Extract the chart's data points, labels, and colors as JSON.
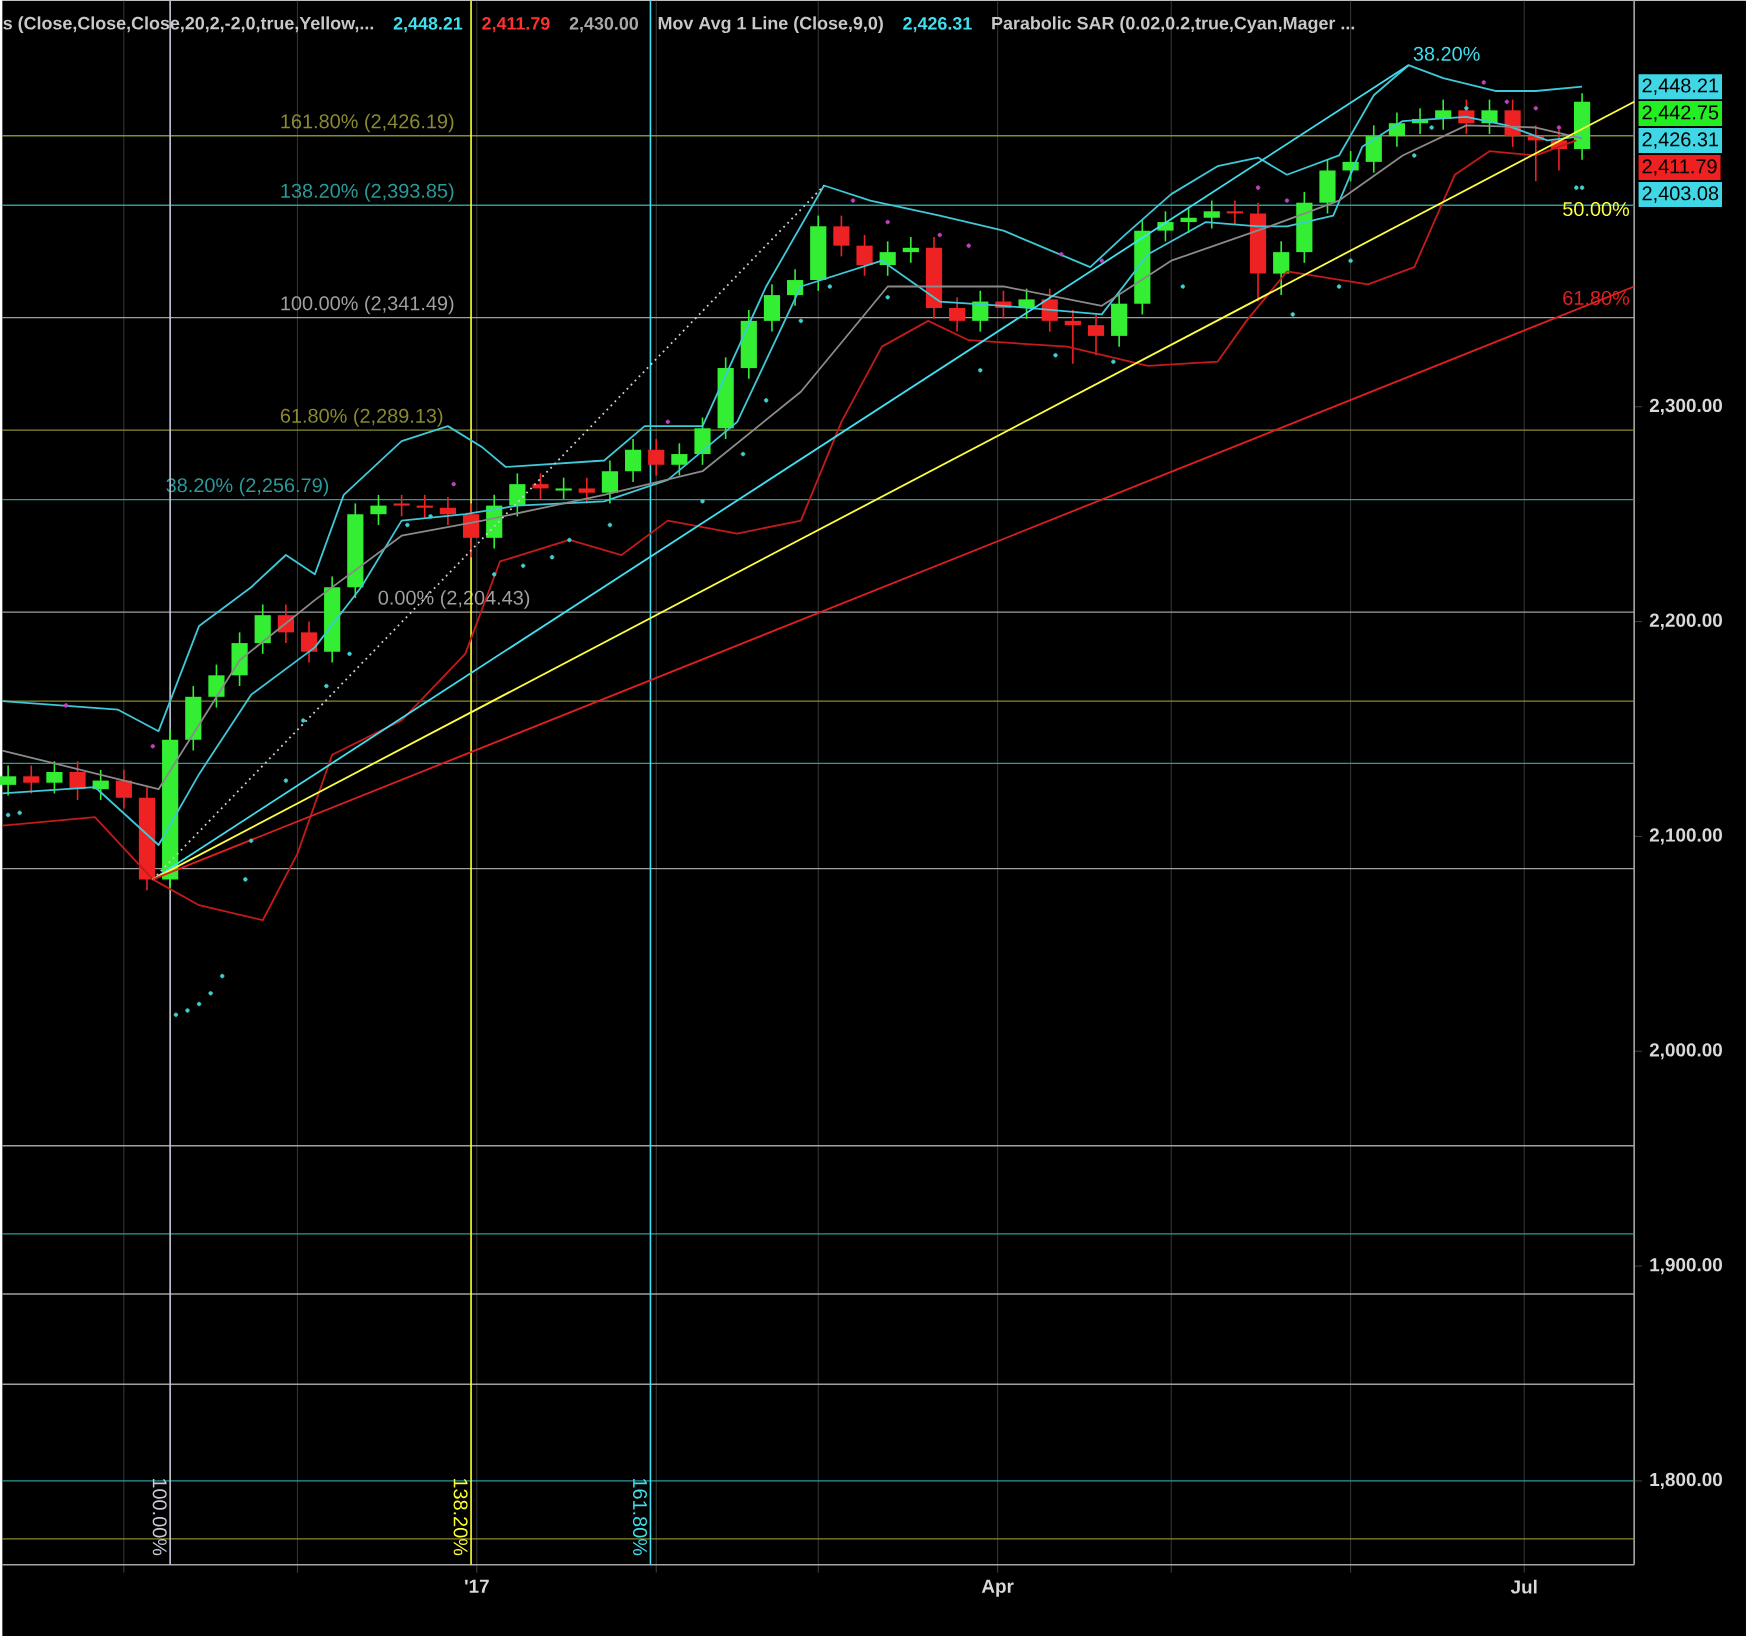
{
  "chart_data": {
    "type": "candlestick",
    "xlim": [
      "2016-10-11",
      "2017-07-20"
    ],
    "ylim": [
      1761,
      2489
    ],
    "xticks": [
      {
        "value": "2016-11-01",
        "label": null
      },
      {
        "value": "2016-12-01",
        "label": null
      },
      {
        "value": "2017-01-01",
        "label": "'17"
      },
      {
        "value": "2017-02-01",
        "label": null
      },
      {
        "value": "2017-03-01",
        "label": null
      },
      {
        "value": "2017-04-01",
        "label": "Apr"
      },
      {
        "value": "2017-05-01",
        "label": null
      },
      {
        "value": "2017-06-01",
        "label": null
      },
      {
        "value": "2017-07-01",
        "label": "Jul"
      }
    ],
    "yticks": [
      {
        "value": 1800,
        "label": "1,800.00"
      },
      {
        "value": 1900,
        "label": "1,900.00"
      },
      {
        "value": 2000,
        "label": "2,000.00"
      },
      {
        "value": 2100,
        "label": "2,100.00"
      },
      {
        "value": 2200,
        "label": "2,200.00"
      },
      {
        "value": 2300,
        "label": "2,300.00"
      }
    ],
    "grid": "x",
    "x": [
      "2016-10-12",
      "2016-10-16",
      "2016-10-20",
      "2016-10-24",
      "2016-10-28",
      "2016-11-01",
      "2016-11-05",
      "2016-11-09",
      "2016-11-13",
      "2016-11-17",
      "2016-11-21",
      "2016-11-25",
      "2016-11-29",
      "2016-12-03",
      "2016-12-07",
      "2016-12-11",
      "2016-12-15",
      "2016-12-19",
      "2016-12-23",
      "2016-12-27",
      "2016-12-31",
      "2017-01-04",
      "2017-01-08",
      "2017-01-12",
      "2017-01-16",
      "2017-01-20",
      "2017-01-24",
      "2017-01-28",
      "2017-02-01",
      "2017-02-05",
      "2017-02-09",
      "2017-02-13",
      "2017-02-17",
      "2017-02-21",
      "2017-02-25",
      "2017-03-01",
      "2017-03-05",
      "2017-03-09",
      "2017-03-13",
      "2017-03-17",
      "2017-03-21",
      "2017-03-25",
      "2017-03-29",
      "2017-04-02",
      "2017-04-06",
      "2017-04-10",
      "2017-04-14",
      "2017-04-18",
      "2017-04-22",
      "2017-04-26",
      "2017-04-30",
      "2017-05-04",
      "2017-05-08",
      "2017-05-12",
      "2017-05-16",
      "2017-05-20",
      "2017-05-24",
      "2017-05-28",
      "2017-06-01",
      "2017-06-05",
      "2017-06-09",
      "2017-06-13",
      "2017-06-17",
      "2017-06-21",
      "2017-06-25",
      "2017-06-29",
      "2017-07-03",
      "2017-07-07",
      "2017-07-11"
    ],
    "ohlc": [
      [
        2124,
        2133,
        2119,
        2128
      ],
      [
        2128,
        2133,
        2120,
        2125
      ],
      [
        2125,
        2135,
        2120,
        2130
      ],
      [
        2130,
        2135,
        2117,
        2122
      ],
      [
        2122,
        2131,
        2117,
        2126
      ],
      [
        2126,
        2131,
        2113,
        2118
      ],
      [
        2118,
        2123,
        2075,
        2080
      ],
      [
        2080,
        2150,
        2075,
        2145
      ],
      [
        2145,
        2170,
        2140,
        2165
      ],
      [
        2165,
        2180,
        2160,
        2175
      ],
      [
        2175,
        2195,
        2170,
        2190
      ],
      [
        2190,
        2208,
        2185,
        2203
      ],
      [
        2203,
        2208,
        2190,
        2195
      ],
      [
        2195,
        2200,
        2181,
        2186
      ],
      [
        2186,
        2221,
        2181,
        2216
      ],
      [
        2216,
        2255,
        2211,
        2250
      ],
      [
        2250,
        2259,
        2245,
        2254
      ],
      [
        2255,
        2259,
        2249,
        2254
      ],
      [
        2254,
        2259,
        2248,
        2253
      ],
      [
        2253,
        2258,
        2245,
        2250
      ],
      [
        2250,
        2255,
        2230,
        2239
      ],
      [
        2239,
        2259,
        2234,
        2254
      ],
      [
        2254,
        2269,
        2249,
        2264
      ],
      [
        2264,
        2269,
        2257,
        2262
      ],
      [
        2261,
        2267,
        2257,
        2262
      ],
      [
        2262,
        2267,
        2255,
        2260
      ],
      [
        2260,
        2275,
        2255,
        2270
      ],
      [
        2270,
        2285,
        2265,
        2280
      ],
      [
        2280,
        2285,
        2268,
        2273
      ],
      [
        2273,
        2283,
        2268,
        2278
      ],
      [
        2278,
        2295,
        2273,
        2290
      ],
      [
        2290,
        2323,
        2285,
        2318
      ],
      [
        2318,
        2345,
        2313,
        2340
      ],
      [
        2340,
        2357,
        2335,
        2352
      ],
      [
        2352,
        2364,
        2347,
        2359
      ],
      [
        2359,
        2389,
        2354,
        2384
      ],
      [
        2384,
        2389,
        2370,
        2375
      ],
      [
        2375,
        2380,
        2361,
        2366
      ],
      [
        2366,
        2377,
        2361,
        2372
      ],
      [
        2372,
        2379,
        2367,
        2374
      ],
      [
        2374,
        2379,
        2341,
        2346
      ],
      [
        2346,
        2351,
        2335,
        2340
      ],
      [
        2340,
        2354,
        2335,
        2349
      ],
      [
        2349,
        2354,
        2341,
        2346
      ],
      [
        2346,
        2355,
        2341,
        2350
      ],
      [
        2350,
        2355,
        2335,
        2340
      ],
      [
        2340,
        2345,
        2320,
        2338
      ],
      [
        2338,
        2343,
        2324,
        2333
      ],
      [
        2333,
        2353,
        2328,
        2348
      ],
      [
        2348,
        2387,
        2343,
        2382
      ],
      [
        2382,
        2391,
        2377,
        2386
      ],
      [
        2386,
        2393,
        2381,
        2388
      ],
      [
        2388,
        2396,
        2383,
        2391
      ],
      [
        2391,
        2396,
        2385,
        2390
      ],
      [
        2390,
        2395,
        2349,
        2362
      ],
      [
        2362,
        2377,
        2352,
        2372
      ],
      [
        2372,
        2400,
        2367,
        2395
      ],
      [
        2395,
        2415,
        2390,
        2410
      ],
      [
        2410,
        2419,
        2405,
        2414
      ],
      [
        2414,
        2431,
        2409,
        2426
      ],
      [
        2426,
        2437,
        2421,
        2432
      ],
      [
        2432,
        2439,
        2427,
        2434
      ],
      [
        2434,
        2443,
        2429,
        2438
      ],
      [
        2438,
        2443,
        2427,
        2432
      ],
      [
        2432,
        2443,
        2427,
        2438
      ],
      [
        2438,
        2443,
        2421,
        2426
      ],
      [
        2426,
        2431,
        2405,
        2424
      ],
      [
        2424,
        2429,
        2410,
        2420
      ],
      [
        2420,
        2446,
        2415,
        2442
      ]
    ],
    "colors": [
      "#33ee33",
      "#ee2222",
      "#33ee33",
      "#ee2222",
      "#33ee33",
      "#ee2222",
      "#ee2222",
      "#33ee33",
      "#33ee33",
      "#33ee33",
      "#33ee33",
      "#33ee33",
      "#ee2222",
      "#ee2222",
      "#33ee33",
      "#33ee33",
      "#33ee33",
      "#ee2222",
      "#ee2222",
      "#ee2222",
      "#ee2222",
      "#33ee33",
      "#33ee33",
      "#ee2222",
      "#33ee33",
      "#ee2222",
      "#33ee33",
      "#33ee33",
      "#ee2222",
      "#33ee33",
      "#33ee33",
      "#33ee33",
      "#33ee33",
      "#33ee33",
      "#33ee33",
      "#33ee33",
      "#ee2222",
      "#ee2222",
      "#33ee33",
      "#33ee33",
      "#ee2222",
      "#ee2222",
      "#33ee33",
      "#ee2222",
      "#33ee33",
      "#ee2222",
      "#ee2222",
      "#ee2222",
      "#33ee33",
      "#33ee33",
      "#33ee33",
      "#33ee33",
      "#33ee33",
      "#ee2222",
      "#ee2222",
      "#33ee33",
      "#33ee33",
      "#33ee33",
      "#33ee33",
      "#33ee33",
      "#33ee33",
      "#33ee33",
      "#33ee33",
      "#ee2222",
      "#33ee33",
      "#ee2222",
      "#ee2222",
      "#ee2222",
      "#33ee33"
    ],
    "series": [
      {
        "type": "line",
        "color": "#3fc8d8",
        "x": [
          "2016-10-11",
          "2016-10-31",
          "2016-11-07",
          "2016-11-14",
          "2016-11-23",
          "2016-11-29",
          "2016-12-04",
          "2016-12-09",
          "2016-12-19",
          "2016-12-27",
          "2017-01-02",
          "2017-01-06",
          "2017-01-23",
          "2017-01-30",
          "2017-02-09",
          "2017-02-20",
          "2017-03-02",
          "2017-03-10",
          "2017-03-22",
          "2017-04-02",
          "2017-04-17",
          "2017-04-23",
          "2017-05-01",
          "2017-05-09",
          "2017-05-16",
          "2017-05-21",
          "2017-05-30",
          "2017-06-05",
          "2017-06-11",
          "2017-06-17",
          "2017-06-26",
          "2017-07-03",
          "2017-07-11"
        ],
        "values": [
          2163,
          2159,
          2149,
          2198,
          2216,
          2231,
          2222,
          2259,
          2284,
          2291,
          2281,
          2272,
          2275,
          2291,
          2291,
          2356,
          2403,
          2396,
          2389,
          2382,
          2365,
          2380,
          2399,
          2412,
          2416,
          2408,
          2417,
          2445,
          2459,
          2453,
          2447,
          2447,
          2449
        ]
      },
      {
        "type": "line",
        "color": "#3fc8d8",
        "x": [
          "2016-10-11",
          "2016-10-27",
          "2016-11-07",
          "2016-11-14",
          "2016-11-23",
          "2016-12-04",
          "2016-12-12",
          "2016-12-19",
          "2016-12-30",
          "2017-01-08",
          "2017-01-23",
          "2017-02-03",
          "2017-02-15",
          "2017-02-26",
          "2017-03-12",
          "2017-03-22",
          "2017-04-02",
          "2017-04-19",
          "2017-04-27",
          "2017-05-07",
          "2017-05-16",
          "2017-05-21",
          "2017-05-29",
          "2017-06-03",
          "2017-06-10",
          "2017-06-21",
          "2017-06-28",
          "2017-07-05",
          "2017-07-11"
        ],
        "values": [
          2120,
          2123,
          2096,
          2129,
          2166,
          2188,
          2216,
          2247,
          2250,
          2254,
          2256,
          2266,
          2293,
          2356,
          2368,
          2349,
          2347,
          2343,
          2371,
          2386,
          2384,
          2384,
          2389,
          2421,
          2433,
          2435,
          2431,
          2424,
          2426
        ]
      },
      {
        "type": "line",
        "color": "#8a8a8a",
        "x": [
          "2016-10-11",
          "2016-11-07",
          "2016-11-21",
          "2016-12-04",
          "2016-12-19",
          "2017-01-02",
          "2017-01-23",
          "2017-02-09",
          "2017-02-26",
          "2017-03-13",
          "2017-04-02",
          "2017-04-19",
          "2017-05-01",
          "2017-05-18",
          "2017-05-30",
          "2017-06-10",
          "2017-06-21",
          "2017-07-03",
          "2017-07-11"
        ],
        "values": [
          2140,
          2122,
          2182,
          2210,
          2240,
          2247,
          2259,
          2270,
          2307,
          2356,
          2356,
          2347,
          2368,
          2384,
          2396,
          2417,
          2431,
          2430,
          2425
        ]
      },
      {
        "type": "line",
        "color": "#c41a1a",
        "x": [
          "2016-10-11",
          "2016-10-27",
          "2016-11-06",
          "2016-11-14",
          "2016-11-25",
          "2016-12-01",
          "2016-12-07",
          "2016-12-19",
          "2016-12-30",
          "2017-01-05",
          "2017-01-17",
          "2017-01-26",
          "2017-02-03",
          "2017-02-15",
          "2017-02-26",
          "2017-03-05",
          "2017-03-12",
          "2017-03-20",
          "2017-03-27",
          "2017-04-13",
          "2017-04-27",
          "2017-05-09",
          "2017-05-14",
          "2017-05-21",
          "2017-06-04",
          "2017-06-12",
          "2017-06-19",
          "2017-06-25",
          "2017-07-03",
          "2017-07-10"
        ],
        "values": [
          2105,
          2109,
          2080,
          2068,
          2061,
          2092,
          2138,
          2154,
          2185,
          2228,
          2238,
          2231,
          2247,
          2241,
          2247,
          2293,
          2328,
          2340,
          2331,
          2328,
          2319,
          2321,
          2340,
          2363,
          2357,
          2365,
          2408,
          2419,
          2417,
          2424
        ]
      },
      {
        "type": "line",
        "color": "#d0d0d0",
        "line_style": "dotted",
        "x": [
          "2016-11-06",
          "2017-03-02"
        ],
        "values": [
          2080,
          2403
        ]
      },
      {
        "type": "line",
        "name": "38.20%",
        "color": "#40e0f0",
        "x": [
          "2016-11-06",
          "2017-06-11"
        ],
        "values": [
          2080,
          2459
        ]
      },
      {
        "type": "line",
        "name": "50.00%",
        "color": "#ffff40",
        "x": [
          "2016-11-06",
          "2017-07-20"
        ],
        "values": [
          2080,
          2442
        ]
      },
      {
        "type": "line",
        "name": "61.80%",
        "color": "#e02020",
        "x": [
          "2016-11-06",
          "2017-07-20"
        ],
        "values": [
          2080,
          2356
        ]
      },
      {
        "type": "scatter",
        "marker": "circle",
        "color": "#40d0d0",
        "x": [
          "2016-10-12",
          "2016-10-14",
          "2016-11-10",
          "2016-11-12",
          "2016-11-14",
          "2016-11-16",
          "2016-11-18",
          "2016-11-22",
          "2016-11-23",
          "2016-11-29",
          "2016-12-02",
          "2016-12-06",
          "2016-12-10",
          "2016-12-20",
          "2016-12-24",
          "2017-01-04",
          "2017-01-09",
          "2017-01-14",
          "2017-01-17",
          "2017-01-24",
          "2017-02-09",
          "2017-02-16",
          "2017-02-20",
          "2017-02-26",
          "2017-03-03",
          "2017-03-13",
          "2017-03-29",
          "2017-04-11",
          "2017-04-21",
          "2017-05-03",
          "2017-05-22",
          "2017-05-30",
          "2017-06-01",
          "2017-06-12",
          "2017-06-15",
          "2017-06-21",
          "2017-07-10",
          "2017-07-11"
        ],
        "values": [
          2110,
          2111,
          2017,
          2019,
          2022,
          2027,
          2035,
          2080,
          2098,
          2126,
          2154,
          2170,
          2185,
          2245,
          2249,
          2222,
          2226,
          2230,
          2238,
          2245,
          2256,
          2278,
          2303,
          2340,
          2356,
          2351,
          2317,
          2324,
          2321,
          2356,
          2343,
          2356,
          2368,
          2417,
          2430,
          2439,
          2402,
          2402
        ]
      },
      {
        "type": "scatter",
        "marker": "circle",
        "color": "#c040c0",
        "x": [
          "2016-10-22",
          "2016-11-06",
          "2016-12-28",
          "2017-02-03",
          "2017-03-07",
          "2017-03-13",
          "2017-03-22",
          "2017-03-27",
          "2017-04-12",
          "2017-04-19",
          "2017-05-16",
          "2017-05-21",
          "2017-06-24",
          "2017-06-28",
          "2017-07-03",
          "2017-07-07"
        ],
        "values": [
          2161,
          2142,
          2264,
          2293,
          2396,
          2386,
          2380,
          2375,
          2371,
          2368,
          2402,
          2396,
          2451,
          2442,
          2439,
          2430
        ]
      }
    ],
    "ref_lines": [
      {
        "axis": "y",
        "value": 2426.19,
        "label": "161.80% (2,426.19)",
        "color": "#8a8a30"
      },
      {
        "axis": "y",
        "value": 2393.85,
        "label": "138.20% (2,393.85)",
        "color": "#2a9a9a"
      },
      {
        "axis": "y",
        "value": 2341.49,
        "label": "100.00% (2,341.49)",
        "color": "#a0a0a0"
      },
      {
        "axis": "y",
        "value": 2289.13,
        "label": "61.80% (2,289.13)",
        "color": "#8a8a30"
      },
      {
        "axis": "y",
        "value": 2256.79,
        "label": "38.20% (2,256.79)",
        "color": "#2a9a9a"
      },
      {
        "axis": "y",
        "value": 2204.43,
        "label": "0.00% (2,204.43)",
        "color": "#a0a0a0"
      },
      {
        "axis": "y",
        "value": 2163,
        "color": "#8a8a30"
      },
      {
        "axis": "y",
        "value": 2134,
        "color": "#2a9a9a"
      },
      {
        "axis": "y",
        "value": 2085,
        "color": "#a0a0a0"
      },
      {
        "axis": "y",
        "value": 1956,
        "color": "#a0a0a0"
      },
      {
        "axis": "y",
        "value": 1915,
        "color": "#2a9a9a"
      },
      {
        "axis": "y",
        "value": 1887,
        "color": "#a0a0a0"
      },
      {
        "axis": "y",
        "value": 1845,
        "color": "#a0a0a0"
      },
      {
        "axis": "y",
        "value": 1800,
        "color": "#2a9a9a"
      },
      {
        "axis": "y",
        "value": 1773,
        "color": "#8a8a30"
      },
      {
        "axis": "x",
        "value": "2016-11-09",
        "label": "100.00%",
        "color": "#c8c8dc"
      },
      {
        "axis": "x",
        "value": "2016-12-31",
        "label": "138.20%",
        "color": "#ffff30"
      },
      {
        "axis": "x",
        "value": "2017-01-31",
        "label": "161.80%",
        "color": "#40e0f0"
      }
    ],
    "annotations": [
      "s (Close,Close,Close,20,2,-2,0,true,Yellow,...",
      "2,448.21",
      "2,411.79",
      "2,430.00",
      "Mov Avg 1 Line (Close,9,0)",
      "2,426.31",
      "Parabolic SAR (0.02,0.2,true,Cyan,Mager ...",
      "2,448.21",
      "2,442.75",
      "2,426.31",
      "2,411.79",
      "2,403.08"
    ]
  }
}
